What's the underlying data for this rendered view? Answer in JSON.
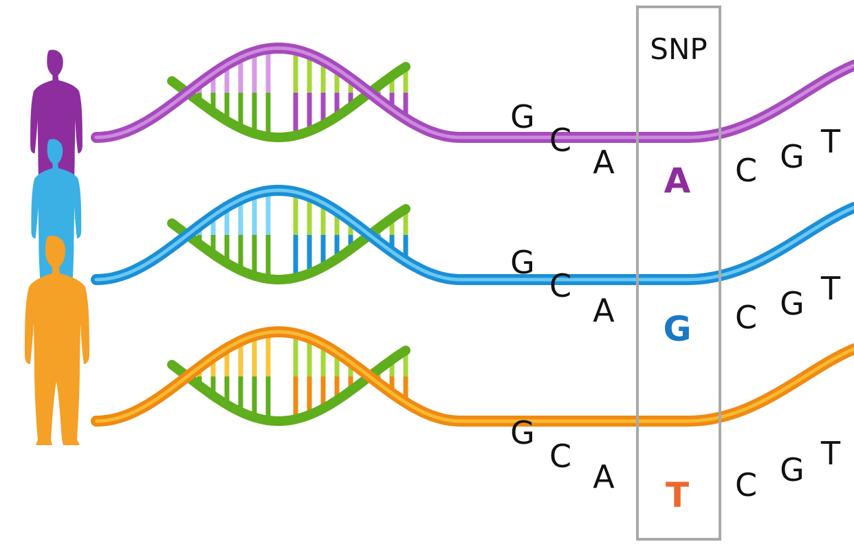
{
  "snp_label": "SNP",
  "rows": [
    {
      "person_color": "#8e2e9e",
      "strand_color": "#a64bbd",
      "strand_light": "#d79be6",
      "left_bases": [
        "G",
        "C",
        "A"
      ],
      "snp_base": "A",
      "snp_color": "#8e2e9e",
      "right_bases": [
        "C",
        "G",
        "T"
      ]
    },
    {
      "person_color": "#3bb0e4",
      "strand_color": "#1b8fd6",
      "strand_light": "#7fd6f7",
      "left_bases": [
        "G",
        "C",
        "A"
      ],
      "snp_base": "G",
      "snp_color": "#1b78c4",
      "right_bases": [
        "C",
        "G",
        "T"
      ]
    },
    {
      "person_color": "#f5a026",
      "strand_color": "#f08a12",
      "strand_light": "#f7c63a",
      "left_bases": [
        "G",
        "C",
        "A"
      ],
      "snp_base": "T",
      "snp_color": "#ea6a2c",
      "right_bases": [
        "C",
        "G",
        "T"
      ]
    }
  ],
  "colors": {
    "green_strand": "#5fae1d",
    "green_light": "#a6d63a",
    "snp_box": "#a9a9a9"
  }
}
